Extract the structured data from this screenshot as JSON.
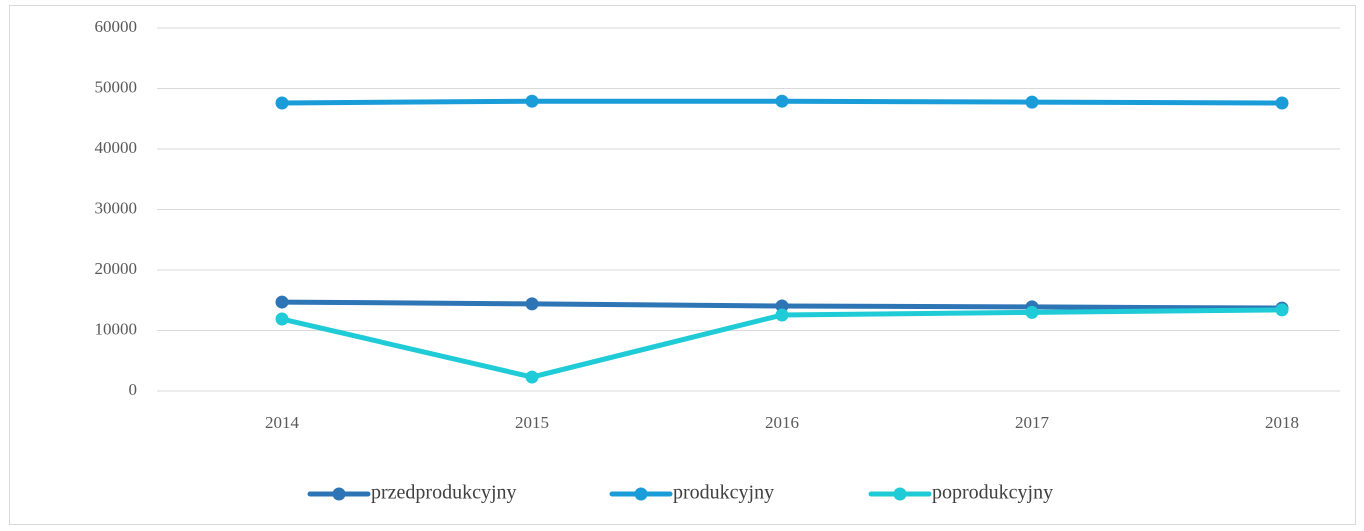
{
  "chart_data": {
    "type": "line",
    "categories": [
      "2014",
      "2015",
      "2016",
      "2017",
      "2018"
    ],
    "series": [
      {
        "name": "przedprodukcyjny",
        "color": "#2e75b6",
        "values": [
          14700,
          14400,
          14050,
          13900,
          13700
        ]
      },
      {
        "name": "produkcyjny",
        "color": "#1a9cd8",
        "values": [
          47600,
          47900,
          47900,
          47750,
          47600
        ]
      },
      {
        "name": "poprodukcyjny",
        "color": "#1ecbd6",
        "values": [
          11900,
          2300,
          12560,
          13000,
          13400
        ]
      }
    ],
    "ylim": [
      0,
      60000
    ],
    "yticks": [
      0,
      10000,
      20000,
      30000,
      40000,
      50000,
      60000
    ],
    "grid": true,
    "legend": "bottom"
  }
}
